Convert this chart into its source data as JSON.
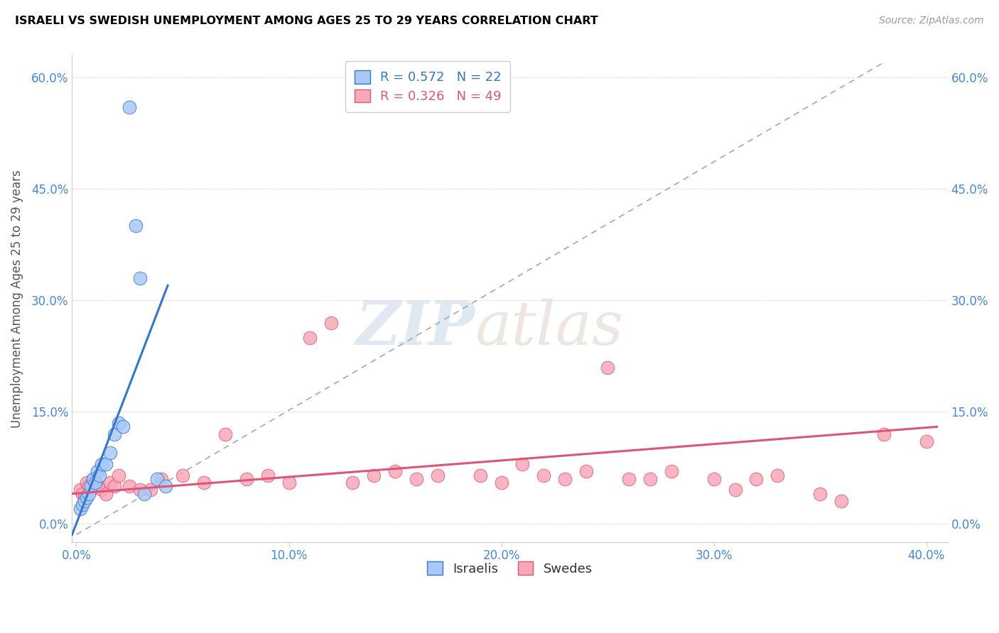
{
  "title": "ISRAELI VS SWEDISH UNEMPLOYMENT AMONG AGES 25 TO 29 YEARS CORRELATION CHART",
  "source": "Source: ZipAtlas.com",
  "xlim": [
    -0.002,
    0.41
  ],
  "ylim": [
    -0.025,
    0.63
  ],
  "ylabel": "Unemployment Among Ages 25 to 29 years",
  "xtick_vals": [
    0.0,
    0.1,
    0.2,
    0.3,
    0.4
  ],
  "ytick_vals": [
    0.0,
    0.15,
    0.3,
    0.45,
    0.6
  ],
  "israeli_R": 0.572,
  "israeli_N": 22,
  "swedish_R": 0.326,
  "swedish_N": 49,
  "israeli_color": "#a8c8f8",
  "swedish_color": "#f8a8b8",
  "israeli_line_color": "#3377cc",
  "swedish_line_color": "#dd5577",
  "dashed_line_color": "#99aabb",
  "watermark_zip": "ZIP",
  "watermark_atlas": "atlas",
  "israeli_x": [
    0.002,
    0.003,
    0.004,
    0.005,
    0.006,
    0.007,
    0.008,
    0.009,
    0.01,
    0.011,
    0.012,
    0.014,
    0.016,
    0.018,
    0.02,
    0.022,
    0.025,
    0.028,
    0.03,
    0.032,
    0.038,
    0.042
  ],
  "israeli_y": [
    0.02,
    0.025,
    0.03,
    0.035,
    0.04,
    0.05,
    0.06,
    0.055,
    0.07,
    0.065,
    0.08,
    0.08,
    0.095,
    0.12,
    0.135,
    0.13,
    0.56,
    0.4,
    0.33,
    0.04,
    0.06,
    0.05
  ],
  "swedish_x": [
    0.002,
    0.003,
    0.004,
    0.005,
    0.006,
    0.007,
    0.008,
    0.009,
    0.01,
    0.012,
    0.014,
    0.016,
    0.018,
    0.02,
    0.025,
    0.03,
    0.035,
    0.04,
    0.05,
    0.06,
    0.07,
    0.08,
    0.09,
    0.1,
    0.11,
    0.12,
    0.13,
    0.14,
    0.15,
    0.16,
    0.17,
    0.19,
    0.2,
    0.21,
    0.22,
    0.23,
    0.24,
    0.25,
    0.26,
    0.27,
    0.28,
    0.3,
    0.31,
    0.32,
    0.33,
    0.35,
    0.36,
    0.38,
    0.4
  ],
  "swedish_y": [
    0.045,
    0.04,
    0.035,
    0.055,
    0.05,
    0.045,
    0.06,
    0.055,
    0.05,
    0.045,
    0.04,
    0.055,
    0.05,
    0.065,
    0.05,
    0.045,
    0.045,
    0.06,
    0.065,
    0.055,
    0.12,
    0.06,
    0.065,
    0.055,
    0.25,
    0.27,
    0.055,
    0.065,
    0.07,
    0.06,
    0.065,
    0.065,
    0.055,
    0.08,
    0.065,
    0.06,
    0.07,
    0.21,
    0.06,
    0.06,
    0.07,
    0.06,
    0.045,
    0.06,
    0.065,
    0.04,
    0.03,
    0.12,
    0.11
  ],
  "il_line_x0": -0.002,
  "il_line_x1": 0.043,
  "il_line_y0": -0.015,
  "il_line_y1": 0.32,
  "sw_line_x0": -0.002,
  "sw_line_x1": 0.405,
  "sw_line_y0": 0.04,
  "sw_line_y1": 0.13,
  "dash_line_x0": 0.0,
  "dash_line_x1": 0.38,
  "dash_line_y0": -0.015,
  "dash_line_y1": 0.62
}
